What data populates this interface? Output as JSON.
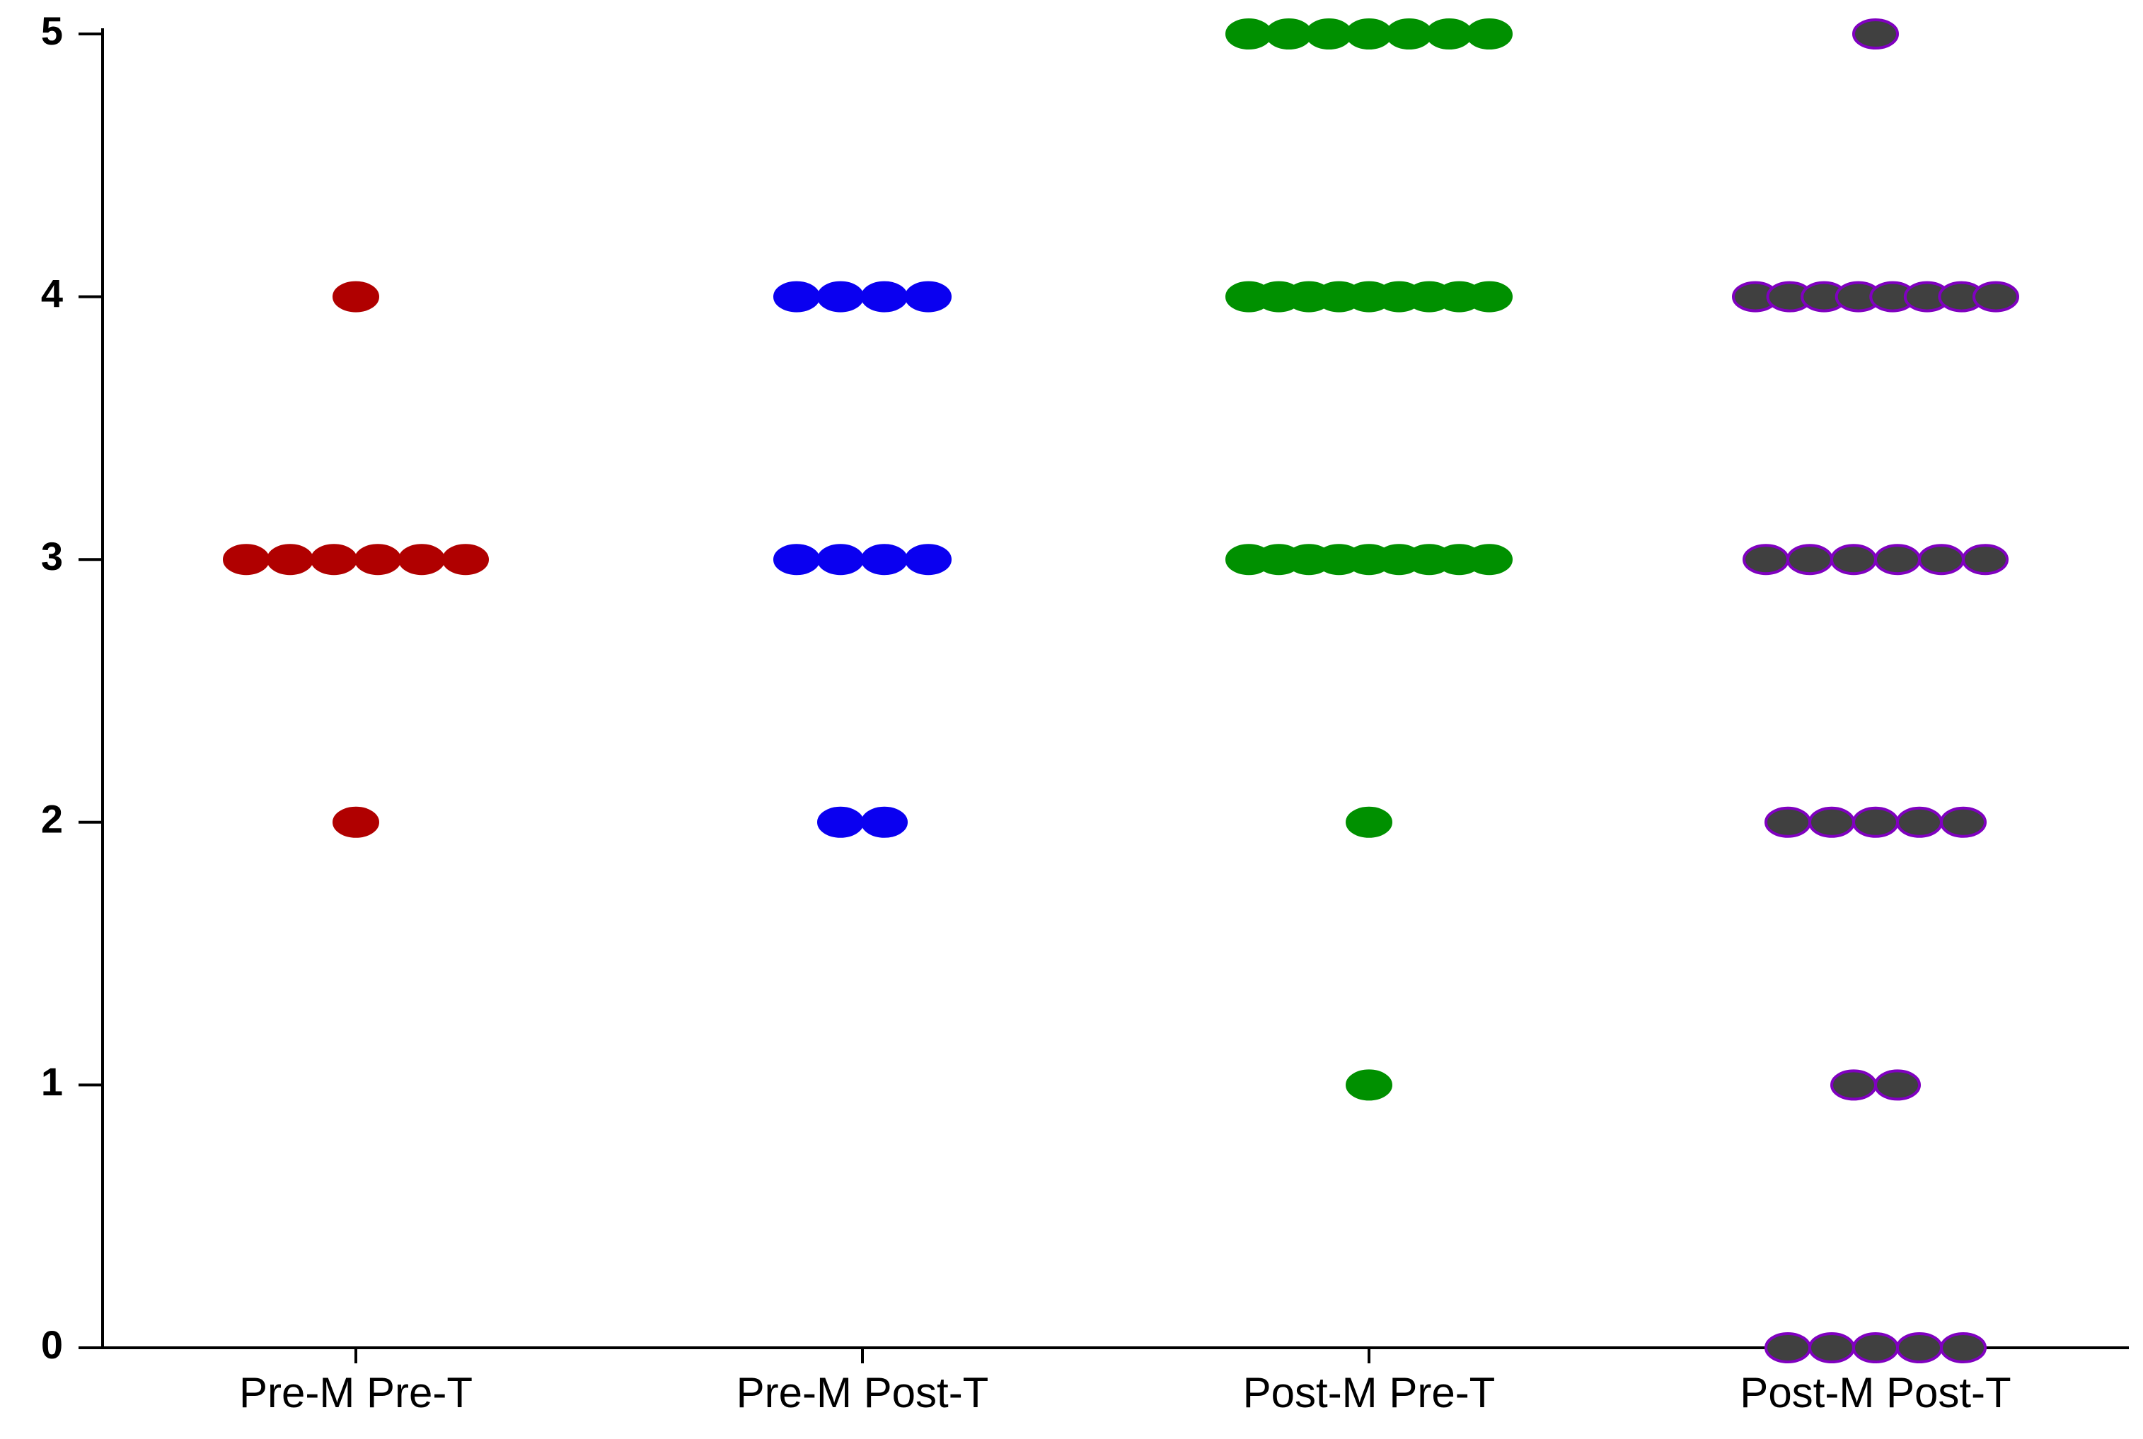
{
  "chart_data": {
    "type": "strip",
    "categories": [
      "Pre-M Pre-T",
      "Pre-M Post-T",
      "Post-M Pre-T",
      "Post-M Post-T"
    ],
    "values": [
      [
        4,
        3,
        3,
        3,
        3,
        3,
        3,
        2
      ],
      [
        4,
        4,
        4,
        4,
        3,
        3,
        3,
        3,
        2,
        2
      ],
      [
        5,
        5,
        5,
        5,
        5,
        5,
        5,
        4,
        4,
        4,
        4,
        4,
        4,
        4,
        4,
        4,
        3,
        3,
        3,
        3,
        3,
        3,
        3,
        3,
        3,
        2,
        1
      ],
      [
        5,
        4,
        4,
        4,
        4,
        4,
        4,
        4,
        4,
        3,
        3,
        3,
        3,
        3,
        3,
        2,
        2,
        2,
        2,
        2,
        1,
        1,
        0,
        0,
        0,
        0,
        0
      ]
    ],
    "colors": [
      "#b00000",
      "#0a00f0",
      "#009000",
      "#404040"
    ],
    "edge_colors": [
      "#b00000",
      "#0a00f0",
      "#009000",
      "#8000c0"
    ],
    "ylim": [
      0,
      5
    ],
    "yticks": [
      0,
      1,
      2,
      3,
      4,
      5
    ]
  }
}
